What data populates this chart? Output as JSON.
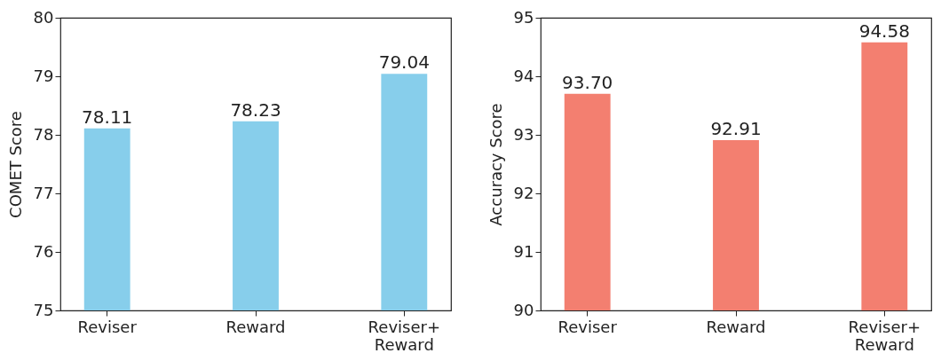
{
  "chart_data": [
    {
      "type": "bar",
      "ylabel": "COMET Score",
      "categories": [
        "Reviser",
        "Reward",
        "Reviser+ Reward"
      ],
      "values": [
        78.11,
        78.23,
        79.04
      ],
      "value_labels": [
        "78.11",
        "78.23",
        "79.04"
      ],
      "color": "#87ceeb",
      "ylim": [
        75,
        80
      ],
      "yticks": [
        75,
        76,
        77,
        78,
        79,
        80
      ]
    },
    {
      "type": "bar",
      "ylabel": "Accuracy Score",
      "categories": [
        "Reviser",
        "Reward",
        "Reviser+ Reward"
      ],
      "values": [
        93.7,
        92.91,
        94.58
      ],
      "value_labels": [
        "93.70",
        "92.91",
        "94.58"
      ],
      "color": "#f37f70",
      "ylim": [
        90,
        95
      ],
      "yticks": [
        90,
        91,
        92,
        93,
        94,
        95
      ]
    }
  ]
}
